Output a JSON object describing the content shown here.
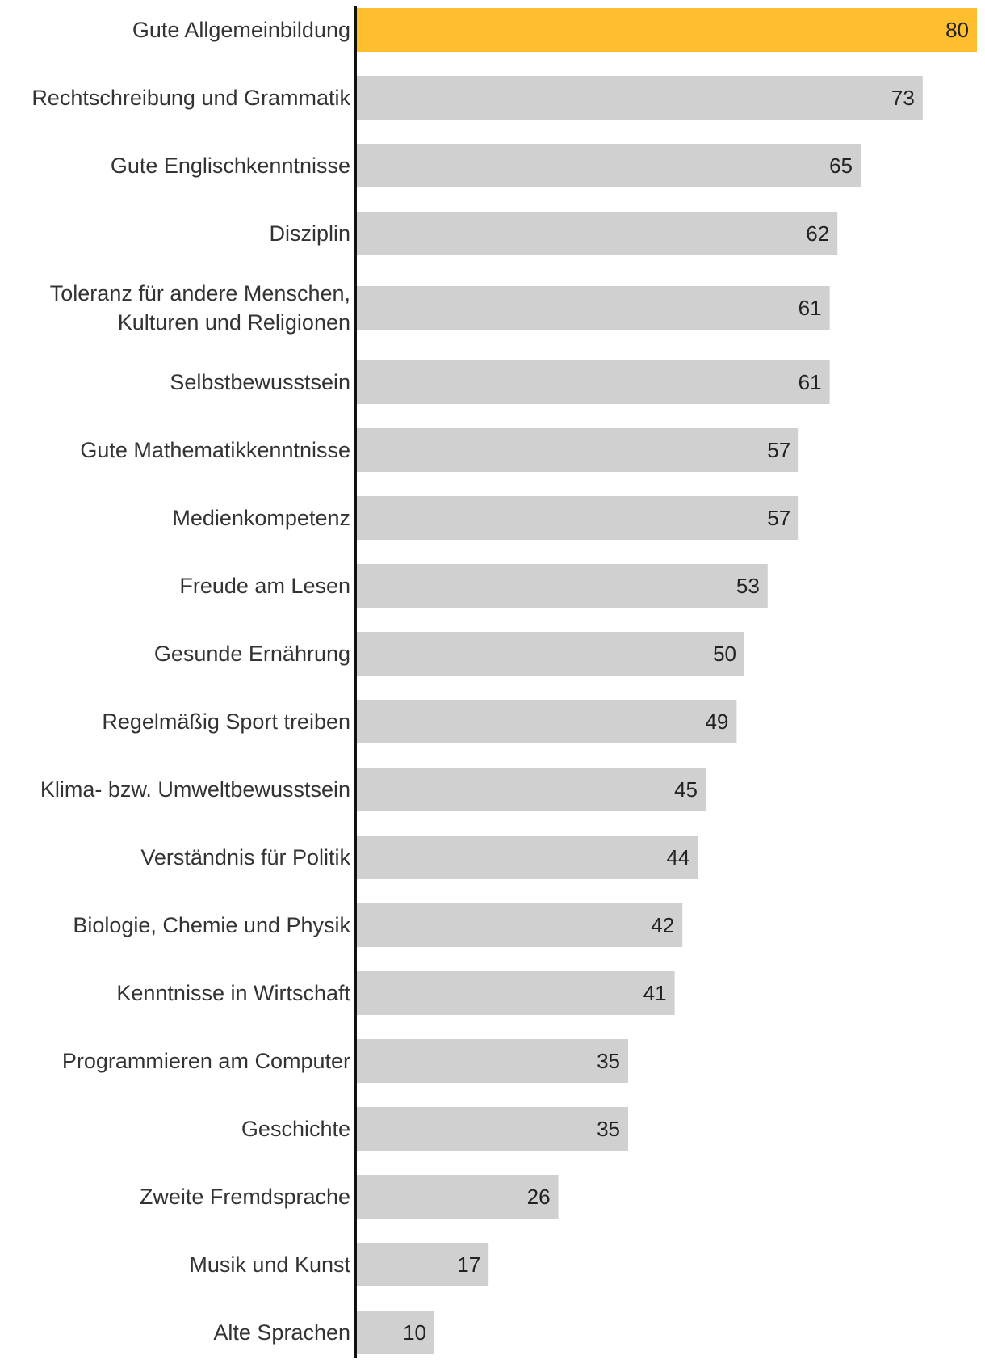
{
  "chart_data": {
    "type": "bar",
    "orientation": "horizontal",
    "title": "",
    "xlabel": "",
    "ylabel": "",
    "xlim": [
      0,
      80
    ],
    "grid": false,
    "legend": "none",
    "colors": {
      "highlight": "#FFBE2E",
      "bar": "#D0D0D0",
      "axis": "#111111",
      "label_text": "#333333",
      "value_text": "#222222"
    },
    "highlight_index": 0,
    "categories": [
      [
        "Gute Allgemeinbildung"
      ],
      [
        "Rechtschreibung und Grammatik"
      ],
      [
        "Gute Englischkenntnisse"
      ],
      [
        "Disziplin"
      ],
      [
        "Toleranz für andere Menschen,",
        "Kulturen und Religionen"
      ],
      [
        "Selbstbewusstsein"
      ],
      [
        "Gute Mathematikkenntnisse"
      ],
      [
        "Medienkompetenz"
      ],
      [
        "Freude am Lesen"
      ],
      [
        "Gesunde Ernährung"
      ],
      [
        "Regelmäßig Sport treiben"
      ],
      [
        "Klima- bzw. Umweltbewusstsein"
      ],
      [
        "Verständnis für Politik"
      ],
      [
        "Biologie, Chemie und Physik"
      ],
      [
        "Kenntnisse in Wirtschaft"
      ],
      [
        "Programmieren am Computer"
      ],
      [
        "Geschichte"
      ],
      [
        "Zweite Fremdsprache"
      ],
      [
        "Musik und Kunst"
      ],
      [
        "Alte Sprachen"
      ]
    ],
    "values": [
      80,
      73,
      65,
      62,
      61,
      61,
      57,
      57,
      53,
      50,
      49,
      45,
      44,
      42,
      41,
      35,
      35,
      26,
      17,
      10
    ]
  }
}
